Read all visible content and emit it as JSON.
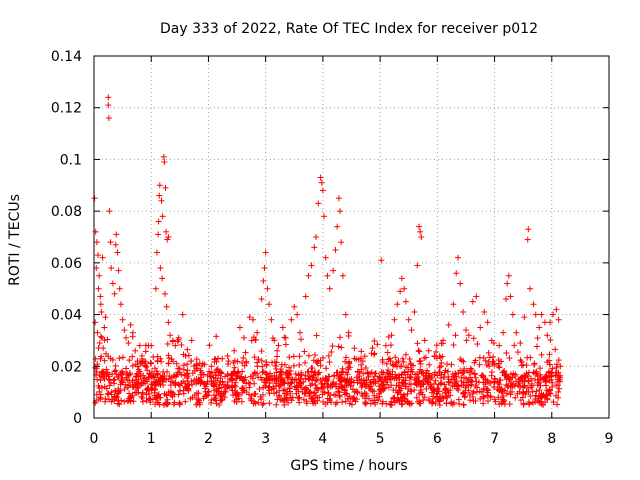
{
  "chart_data": {
    "type": "scatter",
    "title": "Day 333 of 2022, Rate Of TEC Index for receiver p012",
    "xlabel": "GPS time / hours",
    "ylabel": "ROTI / TECUs",
    "xlim": [
      0,
      9
    ],
    "ylim": [
      0,
      0.14
    ],
    "xticks": [
      "0",
      "1",
      "2",
      "3",
      "4",
      "5",
      "6",
      "7",
      "8",
      "9"
    ],
    "yticks": [
      "0",
      "0.02",
      "0.04",
      "0.06",
      "0.08",
      "0.1",
      "0.12",
      "0.14"
    ],
    "grid": true,
    "marker": "+",
    "color": "#ff0000",
    "series": [
      {
        "name": "ROTI",
        "points": [
          [
            0.01,
            0.085
          ],
          [
            0.03,
            0.072
          ],
          [
            0.05,
            0.068
          ],
          [
            0.07,
            0.063
          ],
          [
            0.09,
            0.055
          ],
          [
            0.11,
            0.047
          ],
          [
            0.13,
            0.041
          ],
          [
            0.02,
            0.037
          ],
          [
            0.06,
            0.033
          ],
          [
            0.1,
            0.029
          ],
          [
            0.14,
            0.031
          ],
          [
            0.16,
            0.027
          ],
          [
            0.18,
            0.035
          ],
          [
            0.2,
            0.039
          ],
          [
            0.12,
            0.044
          ],
          [
            0.08,
            0.05
          ],
          [
            0.04,
            0.058
          ],
          [
            0.15,
            0.062
          ],
          [
            0.25,
            0.124
          ],
          [
            0.25,
            0.121
          ],
          [
            0.26,
            0.116
          ],
          [
            0.27,
            0.08
          ],
          [
            0.29,
            0.068
          ],
          [
            0.3,
            0.058
          ],
          [
            0.33,
            0.052
          ],
          [
            0.36,
            0.048
          ],
          [
            0.38,
            0.067
          ],
          [
            0.39,
            0.071
          ],
          [
            0.41,
            0.064
          ],
          [
            0.43,
            0.057
          ],
          [
            0.45,
            0.05
          ],
          [
            0.47,
            0.044
          ],
          [
            0.5,
            0.038
          ],
          [
            0.53,
            0.034
          ],
          [
            0.56,
            0.031
          ],
          [
            0.6,
            0.029
          ],
          [
            0.64,
            0.036
          ],
          [
            0.68,
            0.033
          ],
          [
            0.72,
            0.026
          ],
          [
            0.76,
            0.022
          ],
          [
            0.8,
            0.028
          ],
          [
            0.84,
            0.024
          ],
          [
            0.9,
            0.021
          ],
          [
            0.95,
            0.028
          ],
          [
            1.0,
            0.028
          ],
          [
            1.08,
            0.05
          ],
          [
            1.1,
            0.064
          ],
          [
            1.12,
            0.071
          ],
          [
            1.13,
            0.076
          ],
          [
            1.14,
            0.086
          ],
          [
            1.15,
            0.09
          ],
          [
            1.18,
            0.084
          ],
          [
            1.2,
            0.078
          ],
          [
            1.22,
            0.101
          ],
          [
            1.23,
            0.099
          ],
          [
            1.25,
            0.089
          ],
          [
            1.26,
            0.072
          ],
          [
            1.28,
            0.069
          ],
          [
            1.3,
            0.07
          ],
          [
            1.16,
            0.058
          ],
          [
            1.19,
            0.054
          ],
          [
            1.24,
            0.048
          ],
          [
            1.27,
            0.043
          ],
          [
            1.3,
            0.037
          ],
          [
            1.33,
            0.032
          ],
          [
            1.38,
            0.03
          ],
          [
            1.42,
            0.028
          ],
          [
            1.48,
            0.031
          ],
          [
            1.55,
            0.04
          ],
          [
            1.6,
            0.024
          ],
          [
            1.7,
            0.022
          ],
          [
            1.8,
            0.019
          ],
          [
            1.9,
            0.021
          ],
          [
            2.05,
            0.02
          ],
          [
            2.2,
            0.018
          ],
          [
            2.35,
            0.022
          ],
          [
            2.45,
            0.026
          ],
          [
            2.55,
            0.035
          ],
          [
            2.62,
            0.031
          ],
          [
            2.72,
            0.039
          ],
          [
            2.78,
            0.038
          ],
          [
            2.85,
            0.033
          ],
          [
            2.93,
            0.046
          ],
          [
            2.96,
            0.053
          ],
          [
            2.98,
            0.058
          ],
          [
            3.0,
            0.064
          ],
          [
            3.03,
            0.05
          ],
          [
            3.06,
            0.044
          ],
          [
            3.1,
            0.038
          ],
          [
            3.15,
            0.03
          ],
          [
            3.2,
            0.026
          ],
          [
            3.3,
            0.035
          ],
          [
            3.35,
            0.031
          ],
          [
            3.45,
            0.038
          ],
          [
            3.5,
            0.043
          ],
          [
            3.55,
            0.04
          ],
          [
            3.6,
            0.033
          ],
          [
            3.7,
            0.047
          ],
          [
            3.75,
            0.055
          ],
          [
            3.8,
            0.059
          ],
          [
            3.85,
            0.066
          ],
          [
            3.88,
            0.07
          ],
          [
            3.92,
            0.083
          ],
          [
            3.96,
            0.093
          ],
          [
            3.98,
            0.091
          ],
          [
            4.0,
            0.088
          ],
          [
            4.02,
            0.078
          ],
          [
            4.05,
            0.062
          ],
          [
            4.08,
            0.055
          ],
          [
            4.12,
            0.05
          ],
          [
            4.18,
            0.057
          ],
          [
            4.22,
            0.065
          ],
          [
            4.25,
            0.074
          ],
          [
            4.28,
            0.085
          ],
          [
            4.3,
            0.08
          ],
          [
            4.32,
            0.068
          ],
          [
            4.35,
            0.055
          ],
          [
            4.4,
            0.04
          ],
          [
            4.45,
            0.033
          ],
          [
            4.55,
            0.027
          ],
          [
            4.7,
            0.022
          ],
          [
            4.85,
            0.025
          ],
          [
            5.02,
            0.061
          ],
          [
            5.1,
            0.028
          ],
          [
            5.2,
            0.032
          ],
          [
            5.25,
            0.038
          ],
          [
            5.3,
            0.044
          ],
          [
            5.35,
            0.049
          ],
          [
            5.38,
            0.054
          ],
          [
            5.42,
            0.05
          ],
          [
            5.45,
            0.045
          ],
          [
            5.5,
            0.038
          ],
          [
            5.55,
            0.034
          ],
          [
            5.6,
            0.041
          ],
          [
            5.65,
            0.059
          ],
          [
            5.68,
            0.074
          ],
          [
            5.7,
            0.072
          ],
          [
            5.72,
            0.07
          ],
          [
            5.78,
            0.03
          ],
          [
            5.85,
            0.026
          ],
          [
            5.95,
            0.024
          ],
          [
            6.1,
            0.03
          ],
          [
            6.2,
            0.036
          ],
          [
            6.28,
            0.044
          ],
          [
            6.33,
            0.056
          ],
          [
            6.36,
            0.062
          ],
          [
            6.4,
            0.052
          ],
          [
            6.45,
            0.041
          ],
          [
            6.5,
            0.034
          ],
          [
            6.55,
            0.032
          ],
          [
            6.62,
            0.045
          ],
          [
            6.68,
            0.047
          ],
          [
            6.75,
            0.035
          ],
          [
            6.82,
            0.041
          ],
          [
            6.88,
            0.037
          ],
          [
            6.95,
            0.03
          ],
          [
            7.08,
            0.028
          ],
          [
            7.15,
            0.033
          ],
          [
            7.2,
            0.046
          ],
          [
            7.22,
            0.052
          ],
          [
            7.25,
            0.055
          ],
          [
            7.28,
            0.047
          ],
          [
            7.32,
            0.04
          ],
          [
            7.38,
            0.033
          ],
          [
            7.45,
            0.029
          ],
          [
            7.52,
            0.039
          ],
          [
            7.58,
            0.069
          ],
          [
            7.59,
            0.073
          ],
          [
            7.62,
            0.05
          ],
          [
            7.68,
            0.044
          ],
          [
            7.72,
            0.04
          ],
          [
            7.78,
            0.035
          ],
          [
            7.82,
            0.04
          ],
          [
            7.88,
            0.037
          ],
          [
            7.92,
            0.032
          ],
          [
            7.97,
            0.037
          ],
          [
            8.02,
            0.04
          ],
          [
            8.08,
            0.042
          ],
          [
            8.12,
            0.038
          ],
          [
            8.15,
            0.02
          ]
        ]
      }
    ]
  }
}
